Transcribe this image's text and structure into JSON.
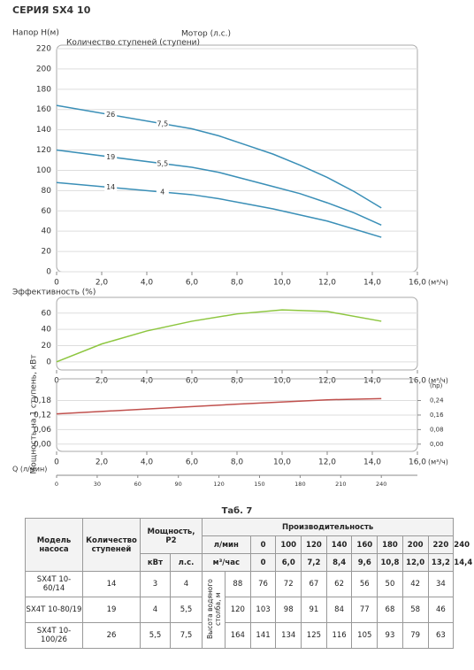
{
  "title": "СЕРИЯ SX4 10",
  "chart_data": [
    {
      "type": "line",
      "ylabel": "Напор Н(м)",
      "stages_title": "Количество ступеней (ступени)",
      "motor_title": "Мотор (л.с.)",
      "xunit": "(м³/ч)",
      "x": [
        0,
        6,
        7.2,
        8.4,
        9.6,
        10.8,
        12,
        13.2,
        14.4
      ],
      "series": [
        {
          "stages_label": "26",
          "motor_label": "7,5",
          "color": "#3a8fb7",
          "values": [
            164,
            141,
            134,
            125,
            116,
            105,
            93,
            79,
            63
          ]
        },
        {
          "stages_label": "19",
          "motor_label": "5,5",
          "color": "#3a8fb7",
          "values": [
            120,
            103,
            98,
            91,
            84,
            77,
            68,
            58,
            46
          ]
        },
        {
          "stages_label": "14",
          "motor_label": "4",
          "color": "#3a8fb7",
          "values": [
            88,
            76,
            72,
            67,
            62,
            56,
            50,
            42,
            34
          ]
        }
      ],
      "xlim": [
        0,
        16
      ],
      "xticks": [
        0,
        {
          "value": 2,
          "label": "2,0"
        },
        {
          "value": 4,
          "label": "4,0"
        },
        {
          "value": 6,
          "label": "6,0"
        },
        {
          "value": 8,
          "label": "8,0"
        },
        {
          "value": 10,
          "label": "10,0"
        },
        {
          "value": 12,
          "label": "12,0"
        },
        {
          "value": 14,
          "label": "14,0"
        },
        {
          "value": 16,
          "label": "16,0"
        }
      ],
      "ylim": [
        0,
        220
      ],
      "yticks": [
        0,
        20,
        40,
        60,
        80,
        100,
        120,
        140,
        160,
        180,
        200,
        220
      ],
      "grid": true
    },
    {
      "type": "line",
      "ylabel": "Эффективность (%)",
      "xunit": "(м³/ч)",
      "x": [
        0,
        2,
        4,
        6,
        8,
        10,
        12,
        14.4
      ],
      "series": [
        {
          "color": "#8dc63f",
          "values": [
            0,
            22,
            38,
            50,
            59,
            64,
            62,
            50
          ]
        }
      ],
      "xlim": [
        0,
        16
      ],
      "xticks": [
        0,
        {
          "value": 2,
          "label": "2,0"
        },
        {
          "value": 4,
          "label": "4,0"
        },
        {
          "value": 6,
          "label": "6,0"
        },
        {
          "value": 8,
          "label": "8,0"
        },
        {
          "value": 10,
          "label": "10,0"
        },
        {
          "value": 12,
          "label": "12,0"
        },
        {
          "value": 14,
          "label": "14,0"
        },
        {
          "value": 16,
          "label": "16,0"
        }
      ],
      "ylim": [
        -10,
        75
      ],
      "yticks": [
        0,
        20,
        40,
        60
      ],
      "grid": true
    },
    {
      "type": "line",
      "ylabel": "Мощность на 1 ступень, кВт",
      "y2label": "(hp)",
      "xunit": "(м³/ч)",
      "x": [
        0,
        4,
        8,
        12,
        14.4
      ],
      "series": [
        {
          "color": "#c0504d",
          "values": [
            0.125,
            0.145,
            0.165,
            0.183,
            0.188
          ]
        }
      ],
      "xlim": [
        0,
        16
      ],
      "xticks": [
        0,
        {
          "value": 2,
          "label": "2,0"
        },
        {
          "value": 4,
          "label": "4,0"
        },
        {
          "value": 6,
          "label": "6,0"
        },
        {
          "value": 8,
          "label": "8,0"
        },
        {
          "value": 10,
          "label": "10,0"
        },
        {
          "value": 12,
          "label": "12,0"
        },
        {
          "value": 14,
          "label": "14,0"
        },
        {
          "value": 16,
          "label": "16,0"
        }
      ],
      "ylim": [
        -0.03,
        0.255
      ],
      "yticks": [
        {
          "value": 0,
          "label": "0,00"
        },
        {
          "value": 0.06,
          "label": "0,06"
        },
        {
          "value": 0.12,
          "label": "0,12"
        },
        {
          "value": 0.18,
          "label": "0,18"
        }
      ],
      "y2lim": [
        -0.04,
        0.34
      ],
      "y2ticks": [
        {
          "value": 0,
          "label": "0,00"
        },
        {
          "value": 0.08,
          "label": "0,08"
        },
        {
          "value": 0.16,
          "label": "0,16"
        },
        {
          "value": 0.24,
          "label": "0,24"
        }
      ],
      "x2label": "Q (л/мин)",
      "x2lim": [
        0,
        266.67
      ],
      "x2ticks": [
        0,
        30,
        60,
        90,
        120,
        150,
        180,
        210,
        240
      ],
      "grid": true
    }
  ],
  "table": {
    "caption": "Таб. 7",
    "model_header": "Модель насоса",
    "stages_header": "Количество ступеней",
    "power_header": "Мощность, P2",
    "kw_header": "кВт",
    "hp_header": "л.с.",
    "flow_header": "Производительность",
    "lpm_label": "л/мин",
    "m3h_label": "м³/час",
    "lpm": [
      0,
      100,
      120,
      140,
      160,
      180,
      200,
      220,
      240
    ],
    "m3h": [
      "0",
      "6,0",
      "7,2",
      "8,4",
      "9,6",
      "10,8",
      "12,0",
      "13,2",
      "14,4"
    ],
    "head_label": "Высота водяного столба, м",
    "rows": [
      {
        "model": "SX4T 10- 60/14",
        "stages": 14,
        "kw": "3",
        "hp": "4",
        "heads": [
          88,
          76,
          72,
          67,
          62,
          56,
          50,
          42,
          34
        ]
      },
      {
        "model": "SX4T 10-80/19",
        "stages": 19,
        "kw": "4",
        "hp": "5,5",
        "heads": [
          120,
          103,
          98,
          91,
          84,
          77,
          68,
          58,
          46
        ]
      },
      {
        "model": "SX4T 10-100/26",
        "stages": 26,
        "kw": "5,5",
        "hp": "7,5",
        "heads": [
          164,
          141,
          134,
          125,
          116,
          105,
          93,
          79,
          63
        ]
      }
    ]
  }
}
